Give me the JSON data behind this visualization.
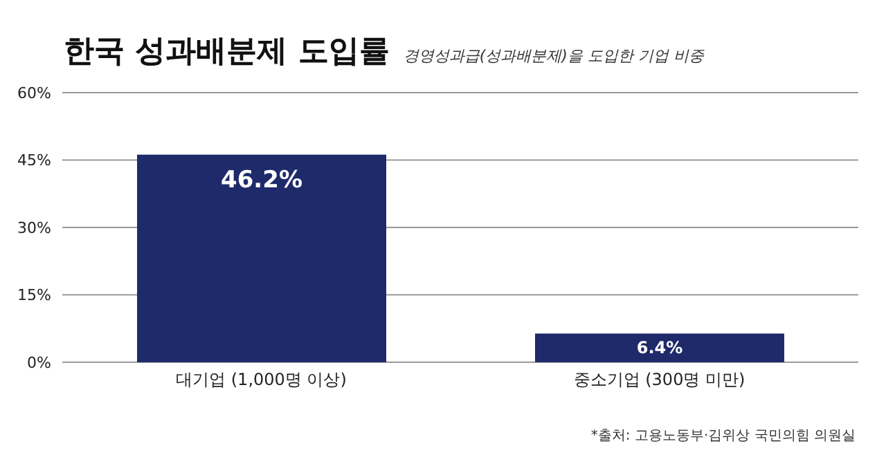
{
  "chart_data": {
    "type": "bar",
    "title": "한국 성과배분제 도입률",
    "subtitle": "경영성과급(성과배분제)을 도입한 기업 비중",
    "categories": [
      "대기업 (1,000명 이상)",
      "중소기업 (300명 미만)"
    ],
    "values": [
      46.2,
      6.4
    ],
    "color": "#1f2a6b",
    "value_labels": [
      "46.2%",
      "6.4%"
    ],
    "ylim": [
      0,
      60
    ],
    "yticks": [
      {
        "value": 0,
        "label": "0%"
      },
      {
        "value": 15,
        "label": "15%"
      },
      {
        "value": 30,
        "label": "30%"
      },
      {
        "value": 45,
        "label": "45%"
      },
      {
        "value": 60,
        "label": "60%"
      }
    ],
    "grid": "y",
    "annotations": [
      "*출처: 고용노동부·김위상 국민의힘 의원실"
    ]
  }
}
